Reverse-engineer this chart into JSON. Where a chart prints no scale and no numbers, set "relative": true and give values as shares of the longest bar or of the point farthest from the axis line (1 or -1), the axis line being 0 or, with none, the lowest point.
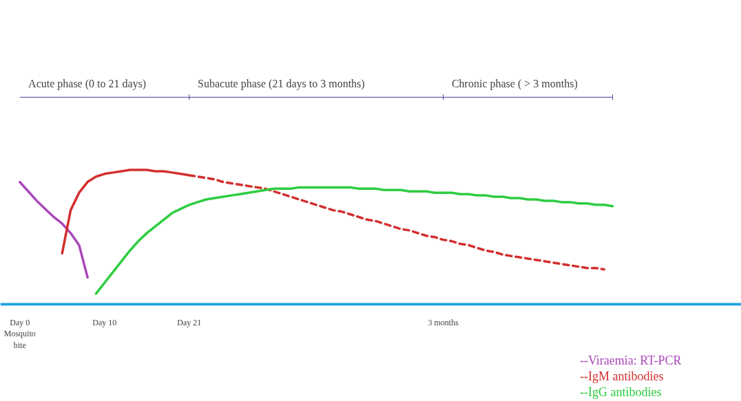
{
  "chart_data": {
    "type": "line",
    "relative": true,
    "categories": [
      "Day 0\nMosquito\nbite",
      null,
      null,
      null,
      null,
      null,
      null,
      null,
      null,
      null,
      "Day 10",
      null,
      null,
      null,
      null,
      null,
      null,
      null,
      null,
      null,
      "Day 21",
      null,
      null,
      null,
      null,
      null,
      null,
      null,
      null,
      null,
      null,
      null,
      null,
      null,
      null,
      null,
      null,
      null,
      null,
      null,
      null,
      null,
      null,
      null,
      null,
      null,
      null,
      null,
      null,
      null,
      "3 months",
      null,
      null,
      null,
      null,
      null,
      null,
      null,
      null,
      null,
      null,
      null,
      null,
      null,
      null,
      null,
      null,
      null,
      null,
      null,
      null,
      null,
      null,
      null,
      null,
      null,
      null,
      null,
      null,
      null,
      null,
      null,
      null,
      null,
      null,
      null
    ],
    "series": [
      {
        "name": "--Viraemia: RT-PCR",
        "color": "#ab47bc",
        "values": [
          0.91,
          0.84,
          0.77,
          0.71,
          0.65,
          0.6,
          0.53,
          0.44,
          0.2,
          null,
          null,
          null,
          null,
          null,
          null,
          null,
          null,
          null,
          null,
          null,
          null,
          null,
          null,
          null,
          null,
          null,
          null,
          null,
          null,
          null,
          null,
          null,
          null,
          null,
          null,
          null,
          null,
          null,
          null,
          null,
          null,
          null,
          null,
          null,
          null,
          null,
          null,
          null,
          null,
          null,
          null,
          null,
          null,
          null,
          null,
          null,
          null,
          null,
          null,
          null,
          null,
          null,
          null,
          null,
          null,
          null,
          null,
          null,
          null,
          null,
          null,
          null,
          null,
          null,
          null,
          null,
          null,
          null,
          null,
          null,
          null,
          null,
          null,
          null,
          null,
          null
        ]
      },
      {
        "name": "--IgM antibodies",
        "color": "#d32f2f",
        "values": [
          null,
          null,
          null,
          null,
          null,
          0.38,
          0.7,
          0.83,
          0.91,
          0.95,
          0.97,
          0.98,
          0.99,
          1.0,
          1.0,
          1.0,
          0.99,
          0.99,
          0.98,
          0.97,
          0.96,
          null,
          null,
          null,
          null,
          null,
          null,
          null,
          null,
          null,
          null,
          null,
          null,
          null,
          null,
          null,
          null,
          null,
          null,
          null,
          null,
          null,
          null,
          null,
          null,
          null,
          null,
          null,
          null,
          null,
          null,
          null,
          null,
          null,
          null,
          null,
          null,
          null,
          null,
          null,
          null,
          null,
          null,
          null,
          null,
          null,
          null,
          null,
          null,
          null,
          null,
          null,
          null,
          null,
          null,
          null,
          null,
          null,
          null,
          null,
          null,
          null,
          null,
          null,
          null,
          null
        ]
      },
      {
        "color": "#d32f2f",
        "line_style": "dashed",
        "values": [
          null,
          null,
          null,
          null,
          null,
          null,
          null,
          null,
          null,
          null,
          null,
          null,
          null,
          null,
          null,
          null,
          null,
          null,
          null,
          null,
          0.96,
          0.95,
          0.94,
          0.93,
          0.91,
          0.9,
          0.89,
          0.88,
          0.87,
          0.86,
          0.84,
          0.82,
          0.8,
          0.78,
          0.76,
          0.74,
          0.72,
          0.7,
          0.69,
          0.67,
          0.65,
          0.63,
          0.62,
          0.6,
          0.58,
          0.56,
          0.55,
          0.53,
          0.51,
          0.5,
          0.48,
          0.47,
          0.45,
          0.44,
          0.42,
          0.4,
          0.39,
          0.37,
          0.36,
          0.35,
          0.34,
          0.33,
          0.32,
          0.31,
          0.3,
          0.29,
          0.28,
          0.27,
          0.27,
          0.26,
          null,
          null,
          null,
          null,
          null,
          null,
          null,
          null,
          null,
          null,
          null,
          null,
          null,
          null,
          null,
          null
        ]
      },
      {
        "name": "--IgG antibodies",
        "color": "#2ecc40",
        "values": [
          null,
          null,
          null,
          null,
          null,
          null,
          null,
          null,
          null,
          0.08,
          0.16,
          0.24,
          0.32,
          0.4,
          0.47,
          0.53,
          0.58,
          0.63,
          0.68,
          0.71,
          0.74,
          0.76,
          0.78,
          0.79,
          0.8,
          0.81,
          0.82,
          0.83,
          0.84,
          0.85,
          0.86,
          0.86,
          0.86,
          0.87,
          0.87,
          0.87,
          0.87,
          0.87,
          0.87,
          0.87,
          0.86,
          0.86,
          0.86,
          0.85,
          0.85,
          0.85,
          0.84,
          0.84,
          0.84,
          0.83,
          0.83,
          0.83,
          0.82,
          0.82,
          0.81,
          0.81,
          0.8,
          0.8,
          0.79,
          0.79,
          0.78,
          0.78,
          0.77,
          0.77,
          0.76,
          0.76,
          0.75,
          0.75,
          0.74,
          0.74,
          0.73,
          null,
          null,
          null,
          null,
          null,
          null,
          null,
          null,
          null,
          null,
          null,
          null,
          null,
          null,
          null
        ]
      }
    ],
    "annotations": [
      "Acute phase (0 to 21 days)",
      "Subacute phase (21 days to 3 months)",
      "Chronic phase ( > 3 months)"
    ],
    "line_style": "solid",
    "legend": "bottom right",
    "grid": false
  }
}
